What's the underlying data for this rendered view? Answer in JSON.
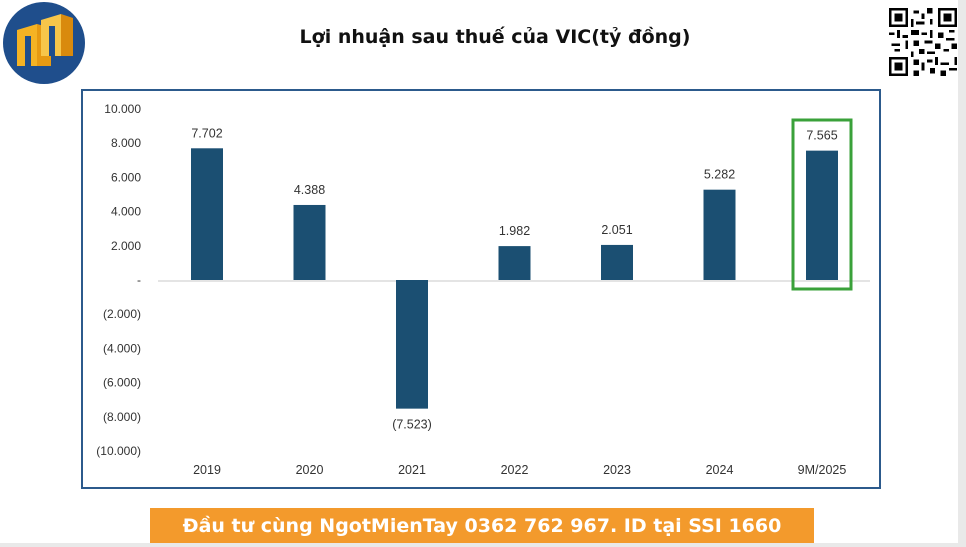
{
  "header": {
    "title": "Lợi nhuận sau thuế của VIC(tỷ đồng)"
  },
  "footer": {
    "promo_text": "Đầu tư cùng NgotMienTay 0362 762 967. ID tại SSI 1660"
  },
  "colors": {
    "bar": "#1b4f72",
    "highlight_box": "#3aa13a",
    "axis_frame": "#2c5a8c",
    "footer_bg": "#f39a2c",
    "logo_bg": "#1f4e8c",
    "logo_fg": "#f5b324"
  },
  "chart_data": {
    "type": "bar",
    "title": "Lợi nhuận sau thuế của VIC(tỷ đồng)",
    "categories": [
      "2019",
      "2020",
      "2021",
      "2022",
      "2023",
      "2024",
      "9M/2025"
    ],
    "values": [
      7702,
      4388,
      -7523,
      1982,
      2051,
      5282,
      7565
    ],
    "data_labels": [
      "7.702",
      "4.388",
      "(7.523)",
      "1.982",
      "2.051",
      "5.282",
      "7.565"
    ],
    "y_ticks": [
      10000,
      8000,
      6000,
      4000,
      2000,
      0,
      -2000,
      -4000,
      -6000,
      -8000,
      -10000
    ],
    "y_tick_labels": [
      "10.000",
      "8.000",
      "6.000",
      "4.000",
      "2.000",
      "-",
      "(2.000)",
      "(4.000)",
      "(6.000)",
      "(8.000)",
      "(10.000)"
    ],
    "ylim": [
      -10000,
      10000
    ],
    "highlighted_category": "9M/2025",
    "grid": false,
    "legend": "none"
  }
}
